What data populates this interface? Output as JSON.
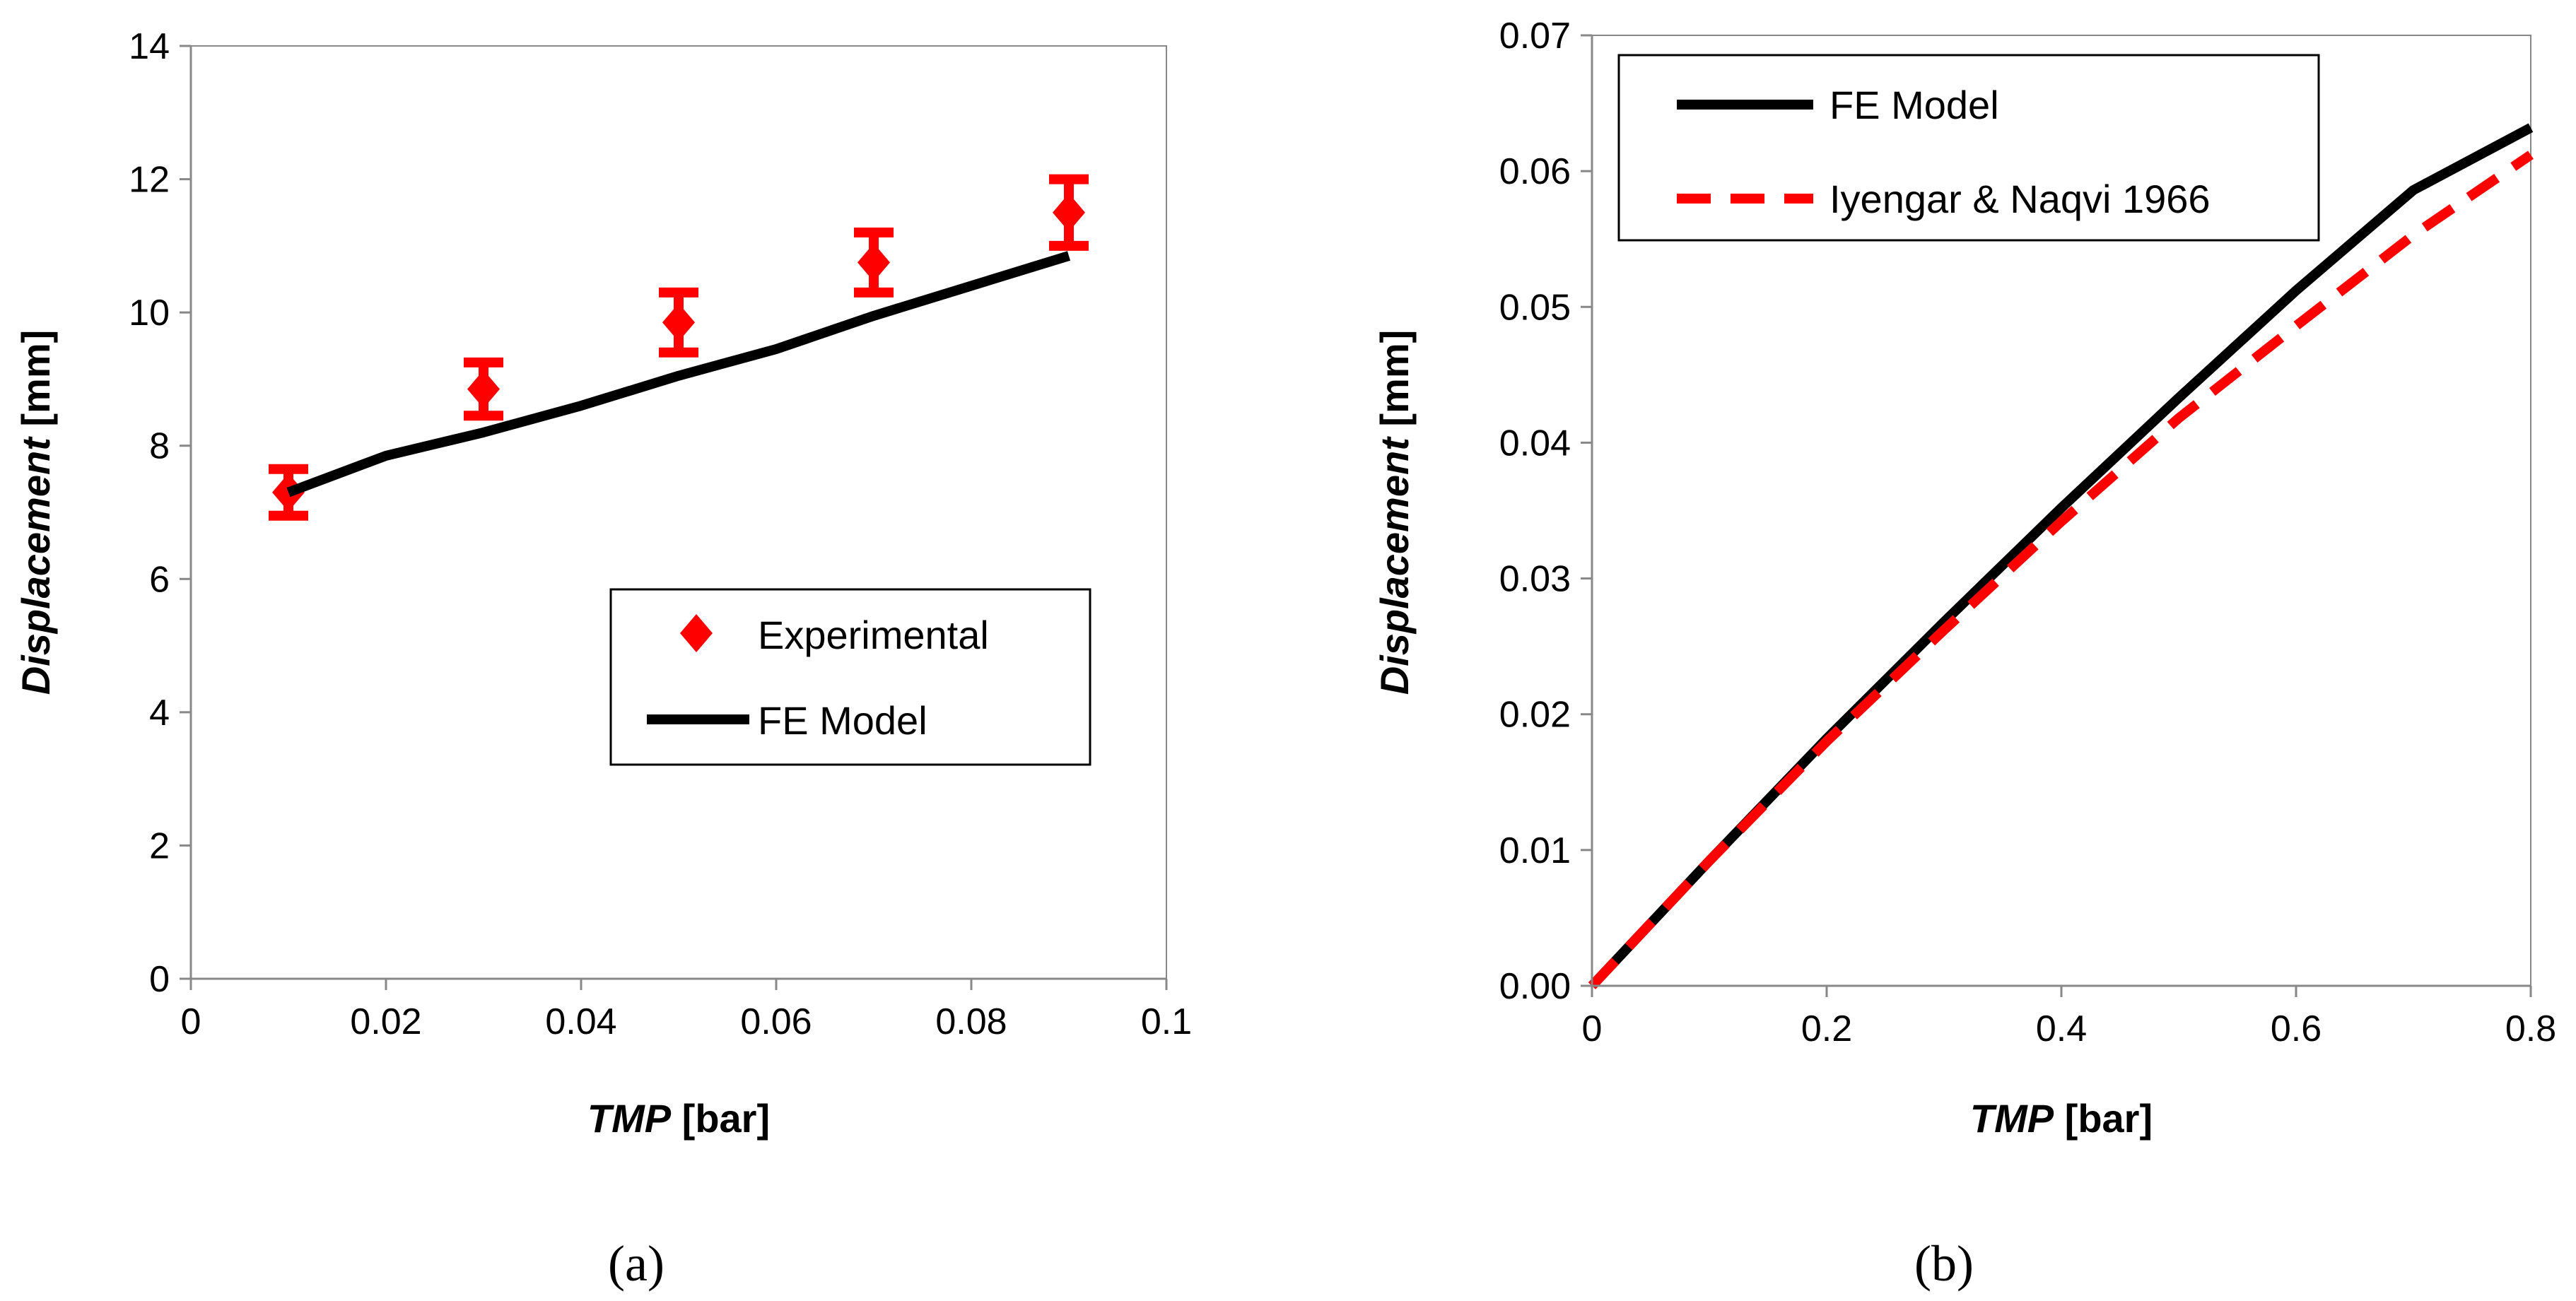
{
  "chart_data": [
    {
      "type": "scatter",
      "panel_label": "(a)",
      "xlabel_italic": "TMP",
      "xlabel_unit": " [bar]",
      "ylabel_italic": "Displacement",
      "ylabel_unit": " [mm]",
      "xlim": [
        0,
        0.1
      ],
      "ylim": [
        0,
        14
      ],
      "xticks": [
        0,
        0.02,
        0.04,
        0.06,
        0.08,
        0.1
      ],
      "xtick_labels": [
        "0",
        "0.02",
        "0.04",
        "0.06",
        "0.08",
        "0.1"
      ],
      "yticks": [
        0,
        2,
        4,
        6,
        8,
        10,
        12,
        14
      ],
      "ytick_labels": [
        "0",
        "2",
        "4",
        "6",
        "8",
        "10",
        "12",
        "14"
      ],
      "grid": false,
      "legend_position": "lower-right",
      "series": [
        {
          "name": "Experimental",
          "kind": "markers",
          "marker": "diamond",
          "color": "#ff0000",
          "x": [
            0.01,
            0.03,
            0.05,
            0.07,
            0.09
          ],
          "y": [
            7.3,
            8.85,
            9.85,
            10.75,
            11.5
          ],
          "error": [
            0.35,
            0.4,
            0.45,
            0.45,
            0.5
          ]
        },
        {
          "name": "FE Model",
          "kind": "line",
          "style": "solid",
          "color": "#000000",
          "x": [
            0.01,
            0.02,
            0.03,
            0.04,
            0.05,
            0.06,
            0.07,
            0.08,
            0.09
          ],
          "y": [
            7.3,
            7.85,
            8.2,
            8.6,
            9.05,
            9.45,
            9.95,
            10.4,
            10.85
          ]
        }
      ]
    },
    {
      "type": "line",
      "panel_label": "(b)",
      "xlabel_italic": "TMP",
      "xlabel_unit": " [bar]",
      "ylabel_italic": "Displacement",
      "ylabel_unit": " [mm]",
      "xlim": [
        0,
        0.8
      ],
      "ylim": [
        0,
        0.07
      ],
      "xticks": [
        0,
        0.2,
        0.4,
        0.6,
        0.8
      ],
      "xtick_labels": [
        "0",
        "0.2",
        "0.4",
        "0.6",
        "0.8"
      ],
      "yticks": [
        0,
        0.01,
        0.02,
        0.03,
        0.04,
        0.05,
        0.06,
        0.07
      ],
      "ytick_labels": [
        "0.00",
        "0.01",
        "0.02",
        "0.03",
        "0.04",
        "0.05",
        "0.06",
        "0.07"
      ],
      "grid": false,
      "legend_position": "top-left",
      "series": [
        {
          "name": "FE Model",
          "kind": "line",
          "style": "solid",
          "color": "#000000",
          "x": [
            0,
            0.1,
            0.2,
            0.3,
            0.4,
            0.5,
            0.6,
            0.7,
            0.8
          ],
          "y": [
            0,
            0.0092,
            0.0182,
            0.0268,
            0.0352,
            0.0433,
            0.0512,
            0.0586,
            0.0632
          ]
        },
        {
          "name": "Iyengar & Naqvi 1966",
          "kind": "line",
          "style": "dashed",
          "color": "#ff0000",
          "x": [
            0,
            0.1,
            0.2,
            0.3,
            0.4,
            0.5,
            0.6,
            0.7,
            0.8
          ],
          "y": [
            0,
            0.0092,
            0.018,
            0.0262,
            0.0342,
            0.0418,
            0.0486,
            0.0553,
            0.0612
          ]
        }
      ]
    }
  ]
}
